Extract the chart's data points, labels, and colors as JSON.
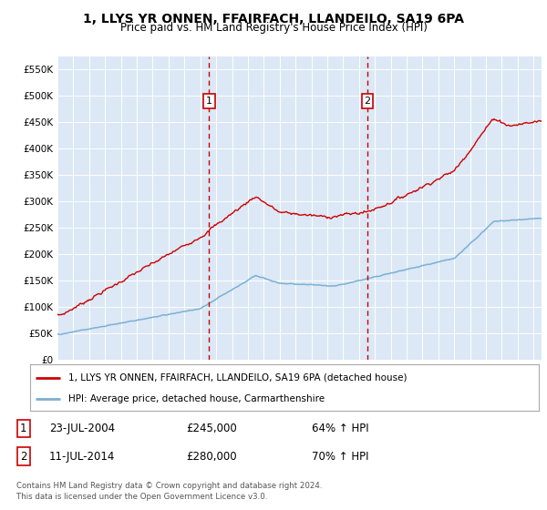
{
  "title": "1, LLYS YR ONNEN, FFAIRFACH, LLANDEILO, SA19 6PA",
  "subtitle": "Price paid vs. HM Land Registry's House Price Index (HPI)",
  "background_color": "#dce8f5",
  "ylim": [
    0,
    575000
  ],
  "yticks": [
    0,
    50000,
    100000,
    150000,
    200000,
    250000,
    300000,
    350000,
    400000,
    450000,
    500000,
    550000
  ],
  "ytick_labels": [
    "£0",
    "£50K",
    "£100K",
    "£150K",
    "£200K",
    "£250K",
    "£300K",
    "£350K",
    "£400K",
    "£450K",
    "£500K",
    "£550K"
  ],
  "red_line_color": "#cc0000",
  "blue_line_color": "#7ab0d4",
  "vline_color": "#cc0000",
  "transaction1_x": 2004.55,
  "transaction1_y": 245000,
  "transaction1_label": "1",
  "transaction2_x": 2014.53,
  "transaction2_y": 280000,
  "transaction2_label": "2",
  "legend_red_label": "1, LLYS YR ONNEN, FFAIRFACH, LLANDEILO, SA19 6PA (detached house)",
  "legend_blue_label": "HPI: Average price, detached house, Carmarthenshire",
  "table_row1": [
    "1",
    "23-JUL-2004",
    "£245,000",
    "64% ↑ HPI"
  ],
  "table_row2": [
    "2",
    "11-JUL-2014",
    "£280,000",
    "70% ↑ HPI"
  ],
  "footer": "Contains HM Land Registry data © Crown copyright and database right 2024.\nThis data is licensed under the Open Government Licence v3.0.",
  "xmin": 1995,
  "xmax": 2025.5,
  "title_fontsize": 10,
  "subtitle_fontsize": 8.5
}
